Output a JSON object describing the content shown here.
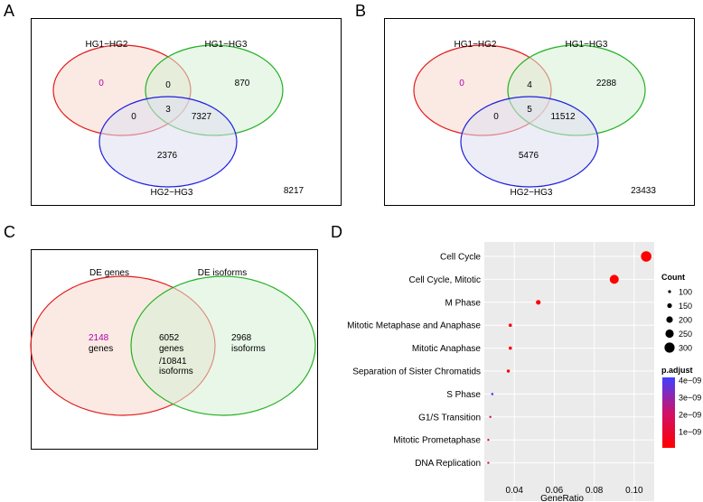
{
  "panels": {
    "A": {
      "letter": "A",
      "venn": {
        "set_labels": [
          "HG1−HG2",
          "HG1−HG3",
          "HG2−HG3"
        ],
        "regions": {
          "only1": "0",
          "only2": "870",
          "only3": "2376",
          "r12": "0",
          "r13": "0",
          "r23": "7327",
          "r123": "3"
        },
        "outside": "8217"
      }
    },
    "B": {
      "letter": "B",
      "venn": {
        "set_labels": [
          "HG1−HG2",
          "HG1−HG3",
          "HG2−HG3"
        ],
        "regions": {
          "only1": "0",
          "only2": "2288",
          "only3": "5476",
          "r12": "4",
          "r13": "0",
          "r23": "11512",
          "r123": "5"
        },
        "outside": "23433"
      }
    },
    "C": {
      "letter": "C",
      "venn": {
        "set_labels": [
          "DE genes",
          "DE isoforms"
        ],
        "left_only": [
          "2148",
          "genes"
        ],
        "overlap": [
          "6052",
          "genes",
          "/10841",
          "isoforms"
        ],
        "right_only": [
          "2968",
          "isoforms"
        ]
      }
    },
    "D": {
      "letter": "D"
    }
  },
  "colors": {
    "set1": "#e31a1c",
    "set2": "#22b022",
    "set3": "#2020e0",
    "fill1": "#f6d9cc",
    "fill2": "#d6f0d6",
    "fill3": "#dedff0",
    "number_pink": "#b000b0"
  },
  "chart_data": {
    "type": "scatter",
    "categories": [
      "Cell Cycle",
      "Cell Cycle, Mitotic",
      "M Phase",
      "Mitotic Metaphase and Anaphase",
      "Mitotic Anaphase",
      "Separation of Sister Chromatids",
      "S Phase",
      "G1/S Transition",
      "Mitotic Prometaphase",
      "DNA Replication"
    ],
    "gene_ratio": [
      0.106,
      0.09,
      0.052,
      0.038,
      0.038,
      0.037,
      0.029,
      0.028,
      0.027,
      0.027
    ],
    "count": [
      310,
      270,
      150,
      110,
      110,
      105,
      85,
      80,
      78,
      78
    ],
    "p_adjust": [
      1e-11,
      1e-11,
      5e-11,
      1e-10,
      1e-10,
      2e-10,
      4e-09,
      8e-10,
      6e-10,
      1e-09
    ],
    "xlabel": "GeneRatio",
    "xlim": [
      0.025,
      0.11
    ],
    "xticks": [
      "0.04",
      "0.06",
      "0.08",
      "0.10"
    ],
    "xtick_values": [
      0.04,
      0.06,
      0.08,
      0.1
    ],
    "grid": true,
    "size_legend": {
      "title": "Count",
      "labels": [
        "100",
        "150",
        "200",
        "250",
        "300"
      ],
      "values": [
        100,
        150,
        200,
        250,
        300
      ]
    },
    "color_legend": {
      "title": "p.adjust",
      "labels": [
        "4e−09",
        "3e−09",
        "2e−09",
        "1e−09"
      ],
      "range": [
        0,
        4e-09
      ],
      "low_color": "#ff0000",
      "high_color": "#4040ff"
    },
    "legend_position": "right"
  }
}
